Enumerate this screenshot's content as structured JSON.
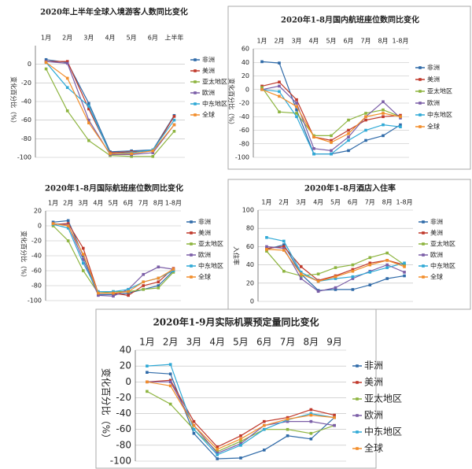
{
  "chart_data": [
    {
      "type": "line",
      "title": "2020年上半年全球入境游客人数同比变化",
      "ylabel": "变化百分比（%）",
      "categories": [
        "1月",
        "2月",
        "3月",
        "4月",
        "5月",
        "6月",
        "上半年"
      ],
      "ylim": [
        -100,
        20
      ],
      "yticks": [
        -100,
        -80,
        -60,
        -40,
        -20,
        0
      ],
      "grid": true,
      "series": [
        {
          "name": "非洲",
          "color": "#2f6aa8",
          "values": [
            5,
            2,
            -42,
            -94,
            -93,
            -92,
            -55
          ]
        },
        {
          "name": "美洲",
          "color": "#c0392b",
          "values": [
            3,
            3,
            -48,
            -95,
            -94,
            -93,
            -56
          ]
        },
        {
          "name": "亚太地区",
          "color": "#8db43f",
          "values": [
            -5,
            -50,
            -82,
            -98,
            -99,
            -99,
            -72
          ]
        },
        {
          "name": "欧洲",
          "color": "#7b5ea7",
          "values": [
            3,
            1,
            -60,
            -97,
            -97,
            -95,
            -65
          ]
        },
        {
          "name": "中东地区",
          "color": "#2fa9d6",
          "values": [
            2,
            -25,
            -45,
            -96,
            -95,
            -92,
            -60
          ]
        },
        {
          "name": "全球",
          "color": "#f28e2b",
          "values": [
            2,
            -15,
            -63,
            -96,
            -96,
            -93,
            -65
          ]
        }
      ]
    },
    {
      "type": "line",
      "title": "2020年1-8月国内航班座位数同比变化",
      "ylabel": "变化百分比（%）",
      "categories": [
        "1月",
        "2月",
        "3月",
        "4月",
        "5月",
        "6月",
        "7月",
        "8月",
        "1-8月"
      ],
      "ylim": [
        -100,
        60
      ],
      "yticks": [
        -100,
        -80,
        -60,
        -40,
        -20,
        0,
        20,
        40,
        60
      ],
      "grid": true,
      "series": [
        {
          "name": "非洲",
          "color": "#2f6aa8",
          "values": [
            41,
            39,
            -30,
            -95,
            -95,
            -90,
            -75,
            -68,
            -52
          ]
        },
        {
          "name": "美洲",
          "color": "#c0392b",
          "values": [
            5,
            11,
            -15,
            -70,
            -75,
            -60,
            -45,
            -40,
            -38
          ]
        },
        {
          "name": "亚太地区",
          "color": "#8db43f",
          "values": [
            3,
            -33,
            -35,
            -68,
            -68,
            -45,
            -35,
            -30,
            -40
          ]
        },
        {
          "name": "欧洲",
          "color": "#7b5ea7",
          "values": [
            0,
            5,
            -20,
            -87,
            -90,
            -70,
            -40,
            -18,
            -42
          ]
        },
        {
          "name": "中东地区",
          "color": "#2fa9d6",
          "values": [
            0,
            -3,
            -40,
            -95,
            -95,
            -75,
            -60,
            -52,
            -55
          ]
        },
        {
          "name": "全球",
          "color": "#f28e2b",
          "values": [
            0,
            -10,
            -25,
            -70,
            -78,
            -65,
            -40,
            -35,
            -40
          ]
        }
      ]
    },
    {
      "type": "line",
      "title": "2020年1-8月国际航班座位数同比变化",
      "ylabel": "变化百分比（%）",
      "categories": [
        "1月",
        "2月",
        "3月",
        "4月",
        "5月",
        "6月",
        "7月",
        "8月",
        "1-8月"
      ],
      "ylim": [
        -100,
        20
      ],
      "yticks": [
        -100,
        -80,
        -60,
        -40,
        -20,
        0,
        20
      ],
      "grid": true,
      "series": [
        {
          "name": "非洲",
          "color": "#2f6aa8",
          "values": [
            5,
            7,
            -40,
            -92,
            -92,
            -90,
            -85,
            -80,
            -60
          ]
        },
        {
          "name": "美洲",
          "color": "#c0392b",
          "values": [
            2,
            3,
            -30,
            -90,
            -90,
            -93,
            -80,
            -75,
            -57
          ]
        },
        {
          "name": "亚太地区",
          "color": "#8db43f",
          "values": [
            0,
            -20,
            -60,
            -90,
            -88,
            -88,
            -85,
            -83,
            -62
          ]
        },
        {
          "name": "欧洲",
          "color": "#7b5ea7",
          "values": [
            3,
            1,
            -45,
            -93,
            -94,
            -85,
            -65,
            -55,
            -58
          ]
        },
        {
          "name": "中东地区",
          "color": "#2fa9d6",
          "values": [
            2,
            -3,
            -50,
            -88,
            -88,
            -85,
            -75,
            -70,
            -60
          ]
        },
        {
          "name": "全球",
          "color": "#f28e2b",
          "values": [
            3,
            0,
            -38,
            -90,
            -90,
            -88,
            -75,
            -70,
            -58
          ]
        }
      ]
    },
    {
      "type": "line",
      "title": "2020年1-8月酒店入住率",
      "ylabel": "入住率",
      "categories": [
        "1月",
        "2月",
        "3月",
        "4月",
        "5月",
        "6月",
        "7月",
        "8月",
        "1-8月"
      ],
      "ylim": [
        0,
        100
      ],
      "yticks": [
        0,
        20,
        40,
        60,
        80,
        100
      ],
      "grid": true,
      "series": [
        {
          "name": "非洲",
          "color": "#2f6aa8",
          "values": [
            57,
            62,
            30,
            12,
            13,
            13,
            18,
            25,
            28
          ]
        },
        {
          "name": "美洲",
          "color": "#c0392b",
          "values": [
            58,
            60,
            38,
            23,
            28,
            35,
            42,
            45,
            40
          ]
        },
        {
          "name": "亚太地区",
          "color": "#8db43f",
          "values": [
            55,
            33,
            28,
            30,
            37,
            40,
            48,
            53,
            40
          ]
        },
        {
          "name": "欧洲",
          "color": "#7b5ea7",
          "values": [
            60,
            58,
            25,
            11,
            15,
            25,
            33,
            40,
            32
          ]
        },
        {
          "name": "中东地区",
          "color": "#2fa9d6",
          "values": [
            70,
            66,
            32,
            22,
            25,
            27,
            32,
            37,
            42
          ]
        },
        {
          "name": "全球",
          "color": "#f28e2b",
          "values": [
            57,
            56,
            30,
            22,
            27,
            33,
            40,
            45,
            38
          ]
        }
      ]
    },
    {
      "type": "line",
      "title": "2020年1-9月实际机票预定量同比变化",
      "ylabel": "变化百分比（%）",
      "categories": [
        "1月",
        "2月",
        "3月",
        "4月",
        "5月",
        "6月",
        "7月",
        "8月",
        "9月"
      ],
      "ylim": [
        -100,
        40
      ],
      "yticks": [
        -100,
        -80,
        -60,
        -40,
        -20,
        0,
        20,
        40
      ],
      "grid": true,
      "series": [
        {
          "name": "非洲",
          "color": "#2f6aa8",
          "values": [
            12,
            10,
            -65,
            -97,
            -96,
            -86,
            -68,
            -72,
            -45
          ]
        },
        {
          "name": "美洲",
          "color": "#c0392b",
          "values": [
            0,
            2,
            -50,
            -82,
            -68,
            -50,
            -45,
            -35,
            -42
          ]
        },
        {
          "name": "亚太地区",
          "color": "#8db43f",
          "values": [
            -12,
            -28,
            -60,
            -88,
            -75,
            -60,
            -60,
            -65,
            -55
          ]
        },
        {
          "name": "欧洲",
          "color": "#7b5ea7",
          "values": [
            0,
            0,
            -55,
            -90,
            -78,
            -55,
            -50,
            -50,
            -55
          ]
        },
        {
          "name": "中东地区",
          "color": "#2fa9d6",
          "values": [
            20,
            22,
            -60,
            -92,
            -80,
            -60,
            -48,
            -40,
            -45
          ]
        },
        {
          "name": "全球",
          "color": "#f28e2b",
          "values": [
            0,
            -5,
            -55,
            -85,
            -72,
            -55,
            -47,
            -42,
            -45
          ]
        }
      ]
    }
  ]
}
